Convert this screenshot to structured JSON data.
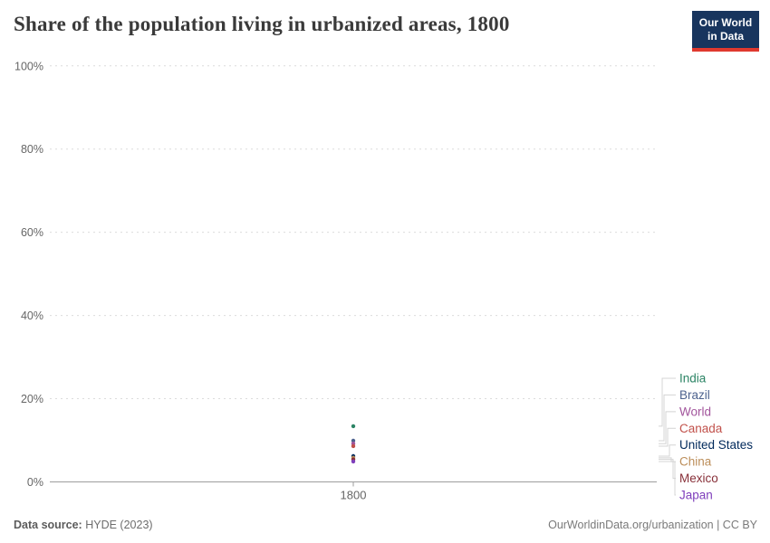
{
  "title": "Share of the population living in urbanized areas, 1800",
  "logo": {
    "line1": "Our World",
    "line2": "in Data",
    "bg_color": "#18355E",
    "accent_color": "#E0392F"
  },
  "footer": {
    "source_label": "Data source:",
    "source_value": "HYDE (2023)",
    "right": "OurWorldinData.org/urbanization | CC BY"
  },
  "chart_data": {
    "type": "scatter",
    "title": "Share of the population living in urbanized areas, 1800",
    "xlabel": "",
    "ylabel": "",
    "x": [
      1800
    ],
    "xtick_label": "1800",
    "ylim": [
      0,
      100
    ],
    "unit": "%",
    "grid": "horizontal-dashed",
    "legend_position": "right",
    "yticks": [
      {
        "value": 0,
        "label": "0%"
      },
      {
        "value": 20,
        "label": "20%"
      },
      {
        "value": 40,
        "label": "40%"
      },
      {
        "value": 60,
        "label": "60%"
      },
      {
        "value": 80,
        "label": "80%"
      },
      {
        "value": 100,
        "label": "100%"
      }
    ],
    "series": [
      {
        "name": "India",
        "year": 1800,
        "value": 13.4,
        "color": "#2C8465"
      },
      {
        "name": "Brazil",
        "year": 1800,
        "value": 9.9,
        "color": "#4D628E"
      },
      {
        "name": "World",
        "year": 1800,
        "value": 9.2,
        "color": "#A2559C"
      },
      {
        "name": "Canada",
        "year": 1800,
        "value": 8.6,
        "color": "#C1514B"
      },
      {
        "name": "United States",
        "year": 1800,
        "value": 6.2,
        "color": "#00295B"
      },
      {
        "name": "China",
        "year": 1800,
        "value": 5.8,
        "color": "#BC8E5A"
      },
      {
        "name": "Mexico",
        "year": 1800,
        "value": 5.4,
        "color": "#883039"
      },
      {
        "name": "Japan",
        "year": 1800,
        "value": 4.9,
        "color": "#8040BC"
      }
    ],
    "style_colors": {
      "gridline": "#dcdcdc",
      "axis": "#9e9e9e",
      "tick_text": "#666666",
      "connector": "#d4d4d4"
    }
  }
}
